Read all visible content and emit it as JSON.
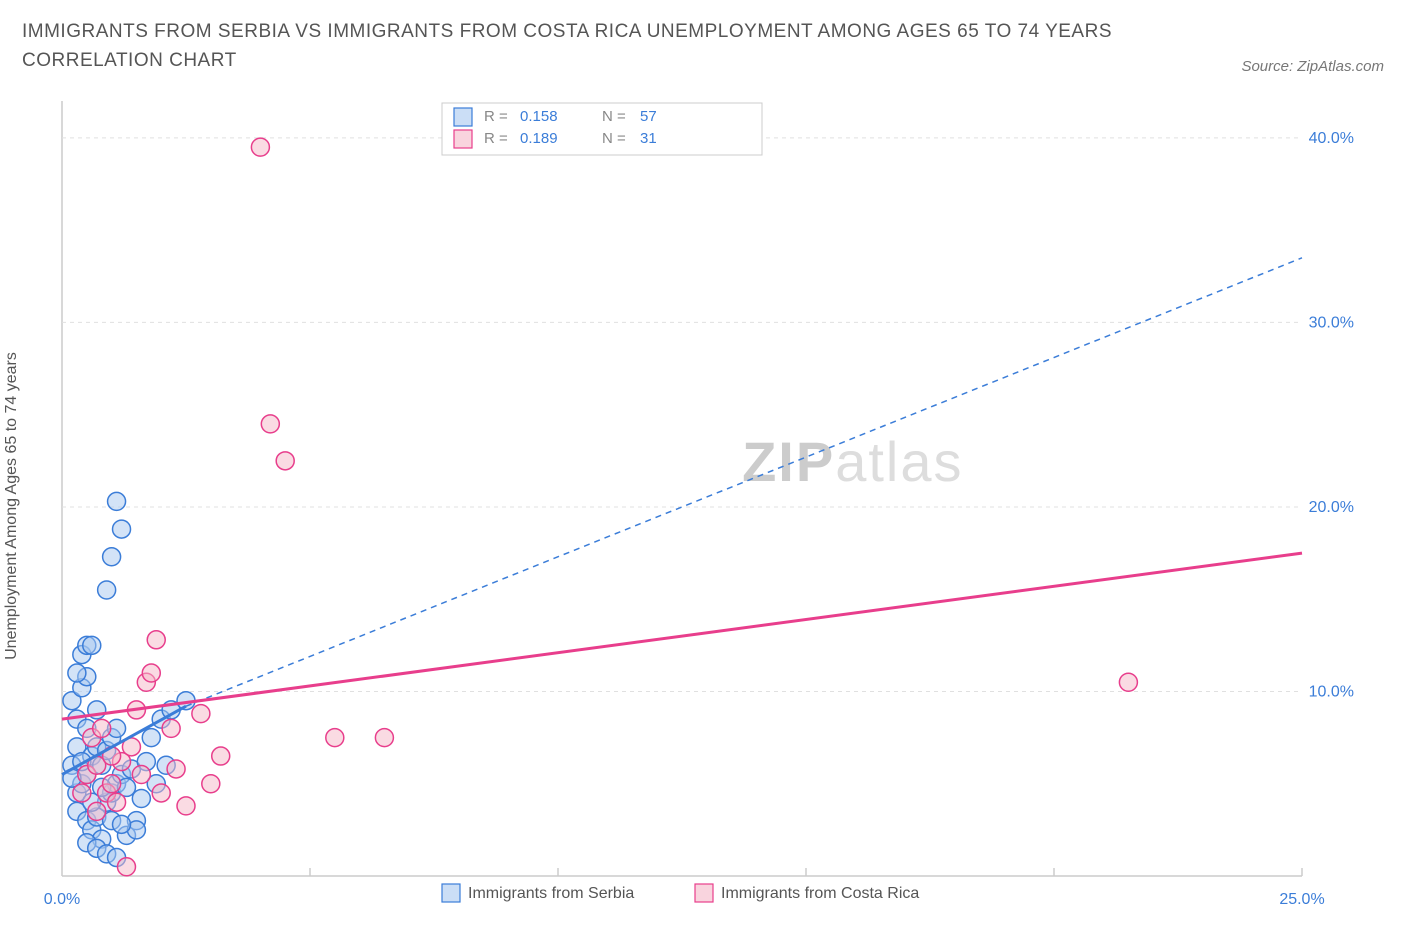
{
  "header": {
    "title": "IMMIGRANTS FROM SERBIA VS IMMIGRANTS FROM COSTA RICA UNEMPLOYMENT AMONG AGES 65 TO 74 YEARS CORRELATION CHART",
    "source": "Source: ZipAtlas.com"
  },
  "ylabel": "Unemployment Among Ages 65 to 74 years",
  "watermark": {
    "bold": "ZIP",
    "light": "atlas"
  },
  "chart": {
    "type": "scatter",
    "xlim": [
      0,
      25
    ],
    "ylim": [
      0,
      42
    ],
    "right_ticks": [
      10,
      20,
      30,
      40
    ],
    "bottom_ticks": [
      0,
      25
    ],
    "grid_x": [
      5,
      10,
      15,
      20,
      25
    ],
    "grid_y": [
      10,
      20,
      30,
      40
    ],
    "background_color": "#ffffff",
    "grid_color": "#e0e0e0",
    "series": [
      {
        "name": "Immigrants from Serbia",
        "color_fill": "#a8c8f0",
        "color_stroke": "#3b7dd8",
        "fill_opacity": 0.5,
        "R": "0.158",
        "N": "57",
        "marker_radius": 9,
        "trend": {
          "x1": 0,
          "y1": 5.5,
          "x2": 2.5,
          "y2": 9.2,
          "style": "solid",
          "width": 3
        },
        "trend_ext": {
          "x1": 2.5,
          "y1": 9.2,
          "x2": 25,
          "y2": 33.5,
          "style": "dashed",
          "width": 1.5
        },
        "points": [
          [
            0.2,
            6.0
          ],
          [
            0.3,
            7.0
          ],
          [
            0.3,
            8.5
          ],
          [
            0.2,
            9.5
          ],
          [
            0.4,
            10.2
          ],
          [
            0.5,
            10.8
          ],
          [
            0.3,
            4.5
          ],
          [
            0.4,
            5.0
          ],
          [
            0.5,
            5.5
          ],
          [
            0.6,
            6.5
          ],
          [
            0.7,
            7.0
          ],
          [
            0.3,
            3.5
          ],
          [
            0.5,
            3.0
          ],
          [
            0.6,
            2.5
          ],
          [
            0.8,
            2.0
          ],
          [
            0.7,
            3.2
          ],
          [
            0.9,
            4.0
          ],
          [
            1.0,
            4.5
          ],
          [
            1.1,
            5.0
          ],
          [
            1.2,
            5.5
          ],
          [
            1.3,
            4.8
          ],
          [
            0.8,
            6.0
          ],
          [
            0.9,
            6.8
          ],
          [
            1.0,
            7.5
          ],
          [
            1.1,
            8.0
          ],
          [
            0.4,
            12.0
          ],
          [
            0.5,
            12.5
          ],
          [
            0.6,
            12.5
          ],
          [
            0.9,
            15.5
          ],
          [
            1.0,
            17.3
          ],
          [
            1.2,
            18.8
          ],
          [
            1.1,
            20.3
          ],
          [
            0.5,
            1.8
          ],
          [
            0.7,
            1.5
          ],
          [
            0.9,
            1.2
          ],
          [
            1.1,
            1.0
          ],
          [
            1.3,
            2.2
          ],
          [
            1.5,
            3.0
          ],
          [
            1.6,
            4.2
          ],
          [
            1.4,
            5.8
          ],
          [
            1.7,
            6.2
          ],
          [
            1.8,
            7.5
          ],
          [
            2.0,
            8.5
          ],
          [
            2.2,
            9.0
          ],
          [
            2.5,
            9.5
          ],
          [
            1.5,
            2.5
          ],
          [
            1.9,
            5.0
          ],
          [
            2.1,
            6.0
          ],
          [
            0.2,
            5.3
          ],
          [
            0.4,
            6.2
          ],
          [
            0.6,
            4.0
          ],
          [
            0.8,
            4.8
          ],
          [
            1.0,
            3.0
          ],
          [
            1.2,
            2.8
          ],
          [
            0.3,
            11.0
          ],
          [
            0.7,
            9.0
          ],
          [
            0.5,
            8.0
          ]
        ]
      },
      {
        "name": "Immigrants from Costa Rica",
        "color_fill": "#f5b8c8",
        "color_stroke": "#e83e8c",
        "fill_opacity": 0.5,
        "R": "0.189",
        "N": "31",
        "marker_radius": 9,
        "trend": {
          "x1": 0,
          "y1": 8.5,
          "x2": 25,
          "y2": 17.5,
          "style": "solid",
          "width": 3
        },
        "points": [
          [
            0.5,
            5.5
          ],
          [
            0.7,
            6.0
          ],
          [
            0.9,
            4.5
          ],
          [
            1.0,
            5.0
          ],
          [
            1.2,
            6.2
          ],
          [
            1.4,
            7.0
          ],
          [
            1.5,
            9.0
          ],
          [
            1.7,
            10.5
          ],
          [
            1.9,
            12.8
          ],
          [
            1.3,
            0.5
          ],
          [
            2.3,
            5.8
          ],
          [
            2.5,
            3.8
          ],
          [
            2.8,
            8.8
          ],
          [
            3.0,
            5.0
          ],
          [
            3.2,
            6.5
          ],
          [
            5.5,
            7.5
          ],
          [
            6.5,
            7.5
          ],
          [
            21.5,
            10.5
          ],
          [
            4.0,
            39.5
          ],
          [
            4.5,
            22.5
          ],
          [
            4.2,
            24.5
          ],
          [
            0.6,
            7.5
          ],
          [
            0.8,
            8.0
          ],
          [
            1.1,
            4.0
          ],
          [
            1.6,
            5.5
          ],
          [
            2.0,
            4.5
          ],
          [
            2.2,
            8.0
          ],
          [
            0.4,
            4.5
          ],
          [
            0.7,
            3.5
          ],
          [
            1.0,
            6.5
          ],
          [
            1.8,
            11.0
          ]
        ]
      }
    ]
  },
  "stats_legend": {
    "border_color": "#cccccc",
    "text_color": "#888888",
    "value_color": "#3b7dd8",
    "R_label": "R =",
    "N_label": "N ="
  },
  "bottom_legend": {
    "items": [
      {
        "label": "Immigrants from Serbia",
        "swatch_fill": "#a8c8f0",
        "swatch_stroke": "#3b7dd8"
      },
      {
        "label": "Immigrants from Costa Rica",
        "swatch_fill": "#f5b8c8",
        "swatch_stroke": "#e83e8c"
      }
    ]
  }
}
